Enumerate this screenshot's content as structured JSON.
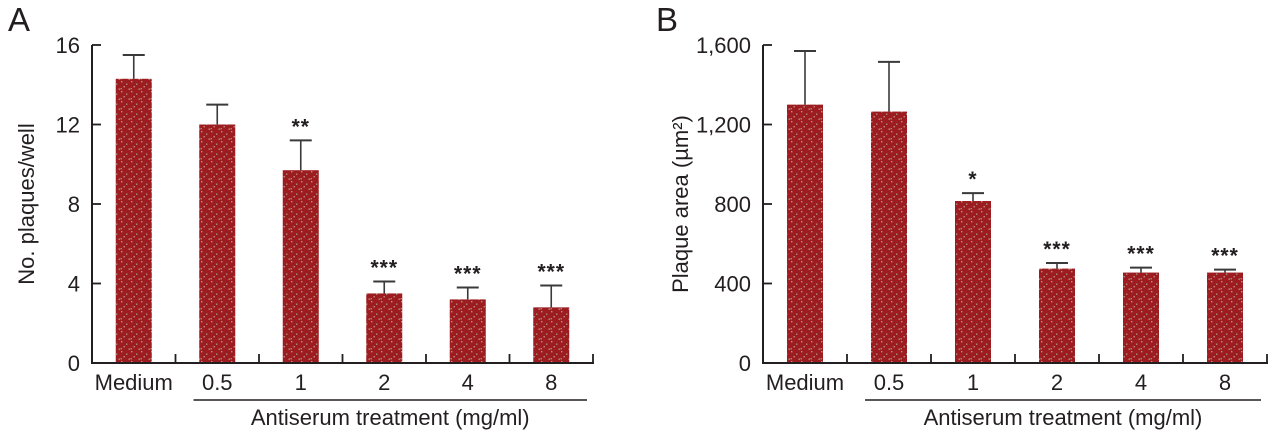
{
  "figure": {
    "panels": [
      {
        "letter": "A"
      },
      {
        "letter": "B"
      }
    ]
  },
  "style": {
    "bar_fill": "#9d1c1f",
    "bar_dot_light": "#c2a193",
    "bar_dot_dark": "#a9a49b",
    "ink": "#231f20",
    "error_bar": "#3a3a3a",
    "background": "#ffffff"
  },
  "chart_data": [
    {
      "type": "bar",
      "panel": "A",
      "categories": [
        "Medium",
        "0.5",
        "1",
        "2",
        "4",
        "8"
      ],
      "values": [
        14.3,
        12,
        9.7,
        3.5,
        3.2,
        2.8
      ],
      "errors_upper": [
        1.2,
        1,
        1.5,
        0.6,
        0.6,
        1.1
      ],
      "significance": [
        "",
        "",
        "**",
        "***",
        "***",
        "***"
      ],
      "ylabel": "No. plaques/well",
      "xlabel": "Antiserum treatment (mg/ml)",
      "x_group_label_span": [
        "0.5",
        "8"
      ],
      "ylim": [
        0,
        16
      ],
      "ytick_values": [
        0,
        4,
        8,
        12,
        16
      ],
      "ytick_labels": [
        "0",
        "4",
        "8",
        "12",
        "16"
      ],
      "grid": false,
      "legend": null,
      "bar_color": "#9d1c1f"
    },
    {
      "type": "bar",
      "panel": "B",
      "categories": [
        "Medium",
        "0.5",
        "1",
        "2",
        "4",
        "8"
      ],
      "values": [
        1300,
        1265,
        815,
        475,
        455,
        455
      ],
      "errors_upper": [
        270,
        250,
        40,
        28,
        25,
        15
      ],
      "significance": [
        "",
        "",
        "*",
        "***",
        "***",
        "***"
      ],
      "ylabel": "Plaque area (µm²)",
      "xlabel": "Antiserum treatment (mg/ml)",
      "x_group_label_span": [
        "0.5",
        "8"
      ],
      "ylim": [
        0,
        1600
      ],
      "ytick_values": [
        0,
        400,
        800,
        1200,
        1600
      ],
      "ytick_labels": [
        "0",
        "400",
        "800",
        "1,200",
        "1,600"
      ],
      "grid": false,
      "legend": null,
      "bar_color": "#9d1c1f"
    }
  ]
}
